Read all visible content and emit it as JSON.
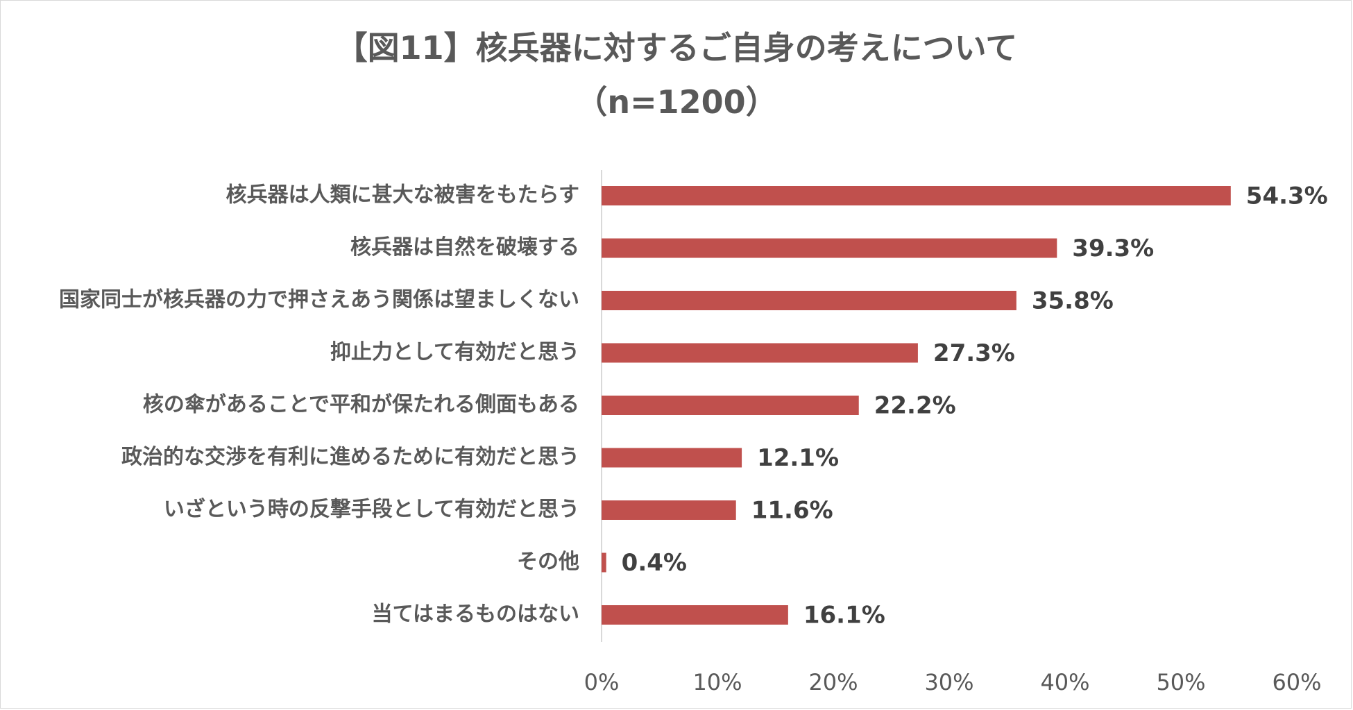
{
  "chart_data": {
    "type": "bar",
    "orientation": "horizontal",
    "title": "【図11】核兵器に対するご自身の考えについて",
    "subtitle": "（n=1200）",
    "categories": [
      "核兵器は人類に甚大な被害をもたらす",
      "核兵器は自然を破壊する",
      "国家同士が核兵器の力で押さえあう関係は望ましくない",
      "抑止力として有効だと思う",
      "核の傘があることで平和が保たれる側面もある",
      "政治的な交渉を有利に進めるために有効だと思う",
      "いざという時の反撃手段として有効だと思う",
      "その他",
      "当てはまるものはない"
    ],
    "values": [
      54.3,
      39.3,
      35.8,
      27.3,
      22.2,
      12.1,
      11.6,
      0.4,
      16.1
    ],
    "value_labels": [
      "54.3%",
      "39.3%",
      "35.8%",
      "27.3%",
      "22.2%",
      "12.1%",
      "11.6%",
      "0.4%",
      "16.1%"
    ],
    "xlim": [
      0,
      60
    ],
    "x_ticks": [
      "0%",
      "10%",
      "20%",
      "30%",
      "40%",
      "50%",
      "60%"
    ],
    "bar_color": "#c0504d",
    "grid": false,
    "legend": "none"
  }
}
